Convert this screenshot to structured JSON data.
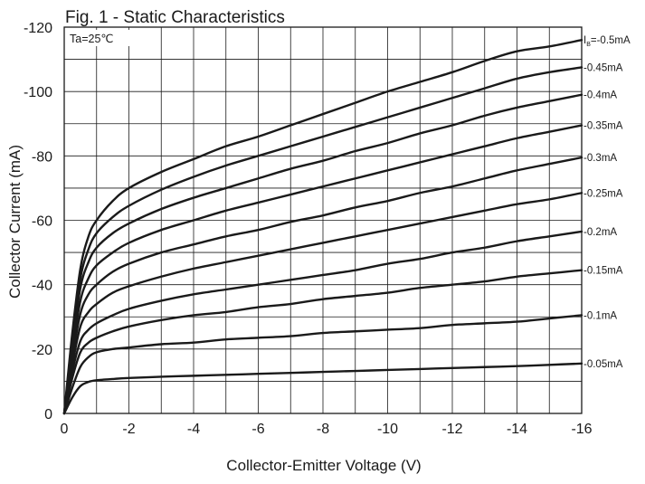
{
  "chart_data": {
    "type": "line",
    "title": "Fig. 1 - Static Characteristics",
    "xlabel": "Collector-Emitter Voltage (V)",
    "ylabel": "Collector  Current (mA)",
    "xlim": [
      0,
      -16
    ],
    "ylim": [
      0,
      -120
    ],
    "x_ticks": [
      "0",
      "-2",
      "-4",
      "-6",
      "-8",
      "-10",
      "-12",
      "-14",
      "-16"
    ],
    "y_ticks": [
      "0",
      "-20",
      "-40",
      "-60",
      "-80",
      "-100",
      "-120"
    ],
    "grid": true,
    "annotation": "Ta=25℃",
    "series_label_prefix": "I",
    "series_label_sub": "B",
    "series_label_eq": "=",
    "x": [
      0,
      -0.25,
      -0.5,
      -0.75,
      -1,
      -1.5,
      -2,
      -3,
      -4,
      -5,
      -6,
      -7,
      -8,
      -9,
      -10,
      -11,
      -12,
      -13,
      -14,
      -15,
      -16
    ],
    "series": [
      {
        "name": "-0.5mA",
        "label": "-0.5mA",
        "values": [
          0,
          -25,
          -45,
          -55,
          -60,
          -66,
          -70,
          -75,
          -79,
          -83,
          -86,
          -89.5,
          -93,
          -96.5,
          -100,
          -103,
          -106,
          -109.5,
          -112.5,
          -114,
          -116
        ]
      },
      {
        "name": "-0.45mA",
        "label": "-0.45mA",
        "values": [
          0,
          -23,
          -42,
          -51,
          -56,
          -61,
          -64.5,
          -69.5,
          -73.5,
          -77,
          -80,
          -83,
          -86,
          -89,
          -92,
          -95,
          -98,
          -101,
          -104,
          -106,
          -107.5
        ]
      },
      {
        "name": "-0.4mA",
        "label": "-0.4mA",
        "values": [
          0,
          -21,
          -39,
          -47,
          -51.5,
          -56,
          -59,
          -63.5,
          -67,
          -70,
          -73,
          -76,
          -78.5,
          -81.5,
          -84,
          -87,
          -89.5,
          -92.5,
          -95,
          -97,
          -99
        ]
      },
      {
        "name": "-0.35mA",
        "label": "-0.35mA",
        "values": [
          0,
          -19,
          -35,
          -42,
          -46,
          -50,
          -53,
          -57,
          -60,
          -63,
          -65.5,
          -68,
          -70.5,
          -73,
          -75.5,
          -78,
          -80.5,
          -83,
          -85.5,
          -87.5,
          -89.5
        ]
      },
      {
        "name": "-0.3mA",
        "label": "-0.3mA",
        "values": [
          0,
          -17,
          -31,
          -37,
          -40,
          -44,
          -46.5,
          -50,
          -52.5,
          -55,
          -57,
          -59.5,
          -61.5,
          -64,
          -66,
          -68.5,
          -70.5,
          -73,
          -75.5,
          -77.5,
          -79.5
        ]
      },
      {
        "name": "-0.25mA",
        "label": "-0.25mA",
        "values": [
          0,
          -15,
          -27,
          -31.5,
          -34,
          -37.5,
          -39.5,
          -42.5,
          -45,
          -47,
          -49,
          -51,
          -53,
          -55,
          -57,
          -59,
          -61,
          -63,
          -65,
          -66.5,
          -68.5
        ]
      },
      {
        "name": "-0.2mA",
        "label": "-0.2mA",
        "values": [
          0,
          -13,
          -22.5,
          -26,
          -28,
          -30.5,
          -32.5,
          -35,
          -37,
          -38.5,
          -40,
          -41.5,
          -43,
          -44.5,
          -46.5,
          -48,
          -50,
          -51.5,
          -53.5,
          -55,
          -56.5
        ]
      },
      {
        "name": "-0.15mA",
        "label": "-0.15mA",
        "values": [
          0,
          -11,
          -19,
          -22,
          -23.5,
          -25.5,
          -27,
          -29,
          -30.5,
          -31.5,
          -33,
          -34,
          -35.5,
          -36.5,
          -37.5,
          -39,
          -40,
          -41,
          -42.5,
          -43.5,
          -44.5
        ]
      },
      {
        "name": "-0.1mA",
        "label": "-0.1mA",
        "values": [
          0,
          -8,
          -14.5,
          -17.5,
          -19,
          -20,
          -20.5,
          -21.5,
          -22,
          -23,
          -23.5,
          -24,
          -25,
          -25.5,
          -26,
          -26.5,
          -27.5,
          -28,
          -28.5,
          -29.5,
          -30.5
        ]
      },
      {
        "name": "-0.05mA",
        "label": "-0.05mA",
        "values": [
          0,
          -5,
          -8.5,
          -9.8,
          -10.3,
          -10.7,
          -11,
          -11.4,
          -11.7,
          -12,
          -12.3,
          -12.6,
          -12.9,
          -13.2,
          -13.5,
          -13.8,
          -14.1,
          -14.4,
          -14.7,
          -15.1,
          -15.5
        ]
      }
    ],
    "colors": {
      "curve": "#1a1a1a",
      "grid": "#1a1a1a",
      "text": "#1a1a1a",
      "background": "#ffffff"
    }
  }
}
